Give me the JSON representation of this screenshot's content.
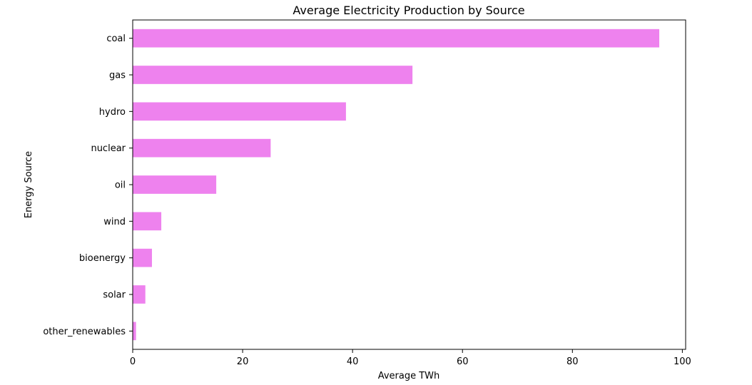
{
  "chart_data": {
    "type": "bar",
    "orientation": "horizontal",
    "title": "Average Electricity Production by Source",
    "xlabel": "Average TWh",
    "ylabel": "Energy Source",
    "categories": [
      "coal",
      "gas",
      "hydro",
      "nuclear",
      "oil",
      "wind",
      "bioenergy",
      "solar",
      "other_renewables"
    ],
    "values": [
      95.8,
      50.9,
      38.8,
      25.1,
      15.2,
      5.2,
      3.5,
      2.3,
      0.6
    ],
    "xlim": [
      0,
      100.6
    ],
    "xticks": [
      0,
      20,
      40,
      60,
      80,
      100
    ],
    "xtick_labels": [
      "0",
      "20",
      "40",
      "60",
      "80",
      "100"
    ],
    "bar_color": "#ee82ee",
    "grid": false,
    "legend": "none"
  }
}
